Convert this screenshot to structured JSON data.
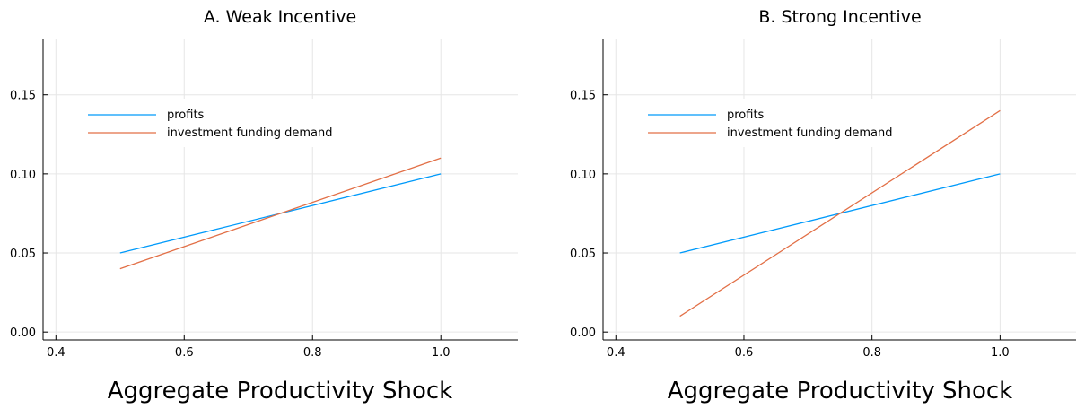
{
  "chart_data": [
    {
      "type": "line",
      "title": "A. Weak Incentive",
      "xlabel": "Aggregate Productivity Shock",
      "ylabel": "",
      "xlim": [
        0.38,
        1.12
      ],
      "ylim": [
        -0.005,
        0.185
      ],
      "xticks": [
        0.4,
        0.6,
        0.8,
        1.0
      ],
      "xtick_labels": [
        "0.4",
        "0.6",
        "0.8",
        "1.0"
      ],
      "yticks": [
        0.0,
        0.05,
        0.1,
        0.15
      ],
      "ytick_labels": [
        "0.00",
        "0.05",
        "0.10",
        "0.15"
      ],
      "grid": true,
      "legend_position": "top-left",
      "series": [
        {
          "name": "profits",
          "color": "#009AFA",
          "x": [
            0.5,
            1.0
          ],
          "y": [
            0.05,
            0.1
          ]
        },
        {
          "name": "investment funding demand",
          "color": "#E26F46",
          "x": [
            0.5,
            1.0
          ],
          "y": [
            0.04,
            0.11
          ]
        }
      ]
    },
    {
      "type": "line",
      "title": "B. Strong Incentive",
      "xlabel": "Aggregate Productivity Shock",
      "ylabel": "",
      "xlim": [
        0.38,
        1.12
      ],
      "ylim": [
        -0.005,
        0.185
      ],
      "xticks": [
        0.4,
        0.6,
        0.8,
        1.0
      ],
      "xtick_labels": [
        "0.4",
        "0.6",
        "0.8",
        "1.0"
      ],
      "yticks": [
        0.0,
        0.05,
        0.1,
        0.15
      ],
      "ytick_labels": [
        "0.00",
        "0.05",
        "0.10",
        "0.15"
      ],
      "grid": true,
      "legend_position": "top-left",
      "series": [
        {
          "name": "profits",
          "color": "#009AFA",
          "x": [
            0.5,
            1.0
          ],
          "y": [
            0.05,
            0.1
          ]
        },
        {
          "name": "investment funding demand",
          "color": "#E26F46",
          "x": [
            0.5,
            1.0
          ],
          "y": [
            0.01,
            0.14
          ]
        }
      ]
    }
  ]
}
